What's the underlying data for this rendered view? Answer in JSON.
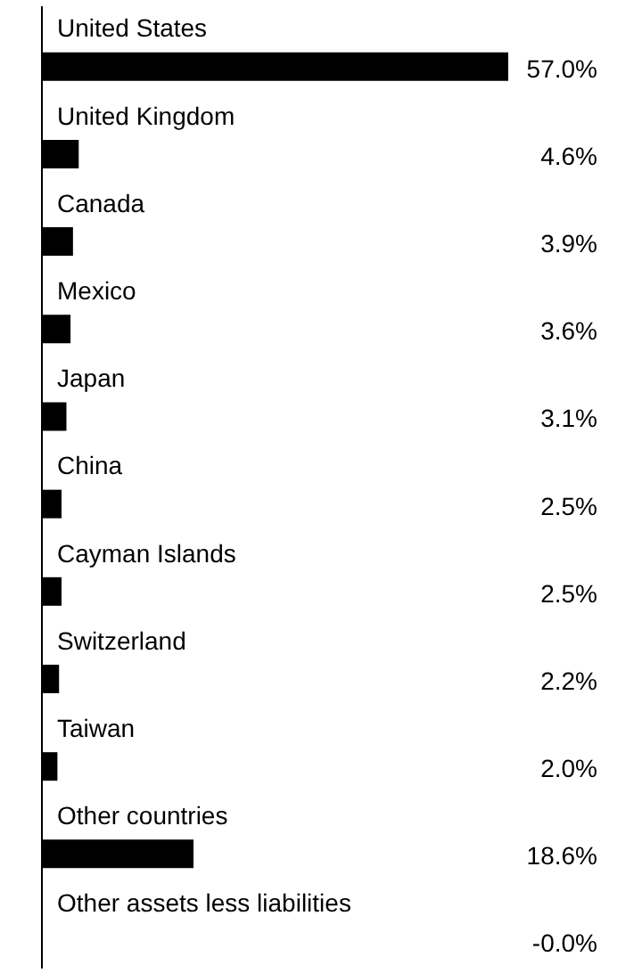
{
  "chart_data": {
    "type": "bar",
    "orientation": "horizontal",
    "categories": [
      "United States",
      "United Kingdom",
      "Canada",
      "Mexico",
      "Japan",
      "China",
      "Cayman Islands",
      "Switzerland",
      "Taiwan",
      "Other countries",
      "Other assets less liabilities"
    ],
    "values": [
      57.0,
      4.6,
      3.9,
      3.6,
      3.1,
      2.5,
      2.5,
      2.2,
      2.0,
      18.6,
      0
    ],
    "value_labels": [
      "57.0%",
      "4.6%",
      "3.9%",
      "3.6%",
      "3.1%",
      "2.5%",
      "2.5%",
      "2.2%",
      "2.0%",
      "18.6%",
      "-0.0%"
    ],
    "color": "#000000"
  }
}
